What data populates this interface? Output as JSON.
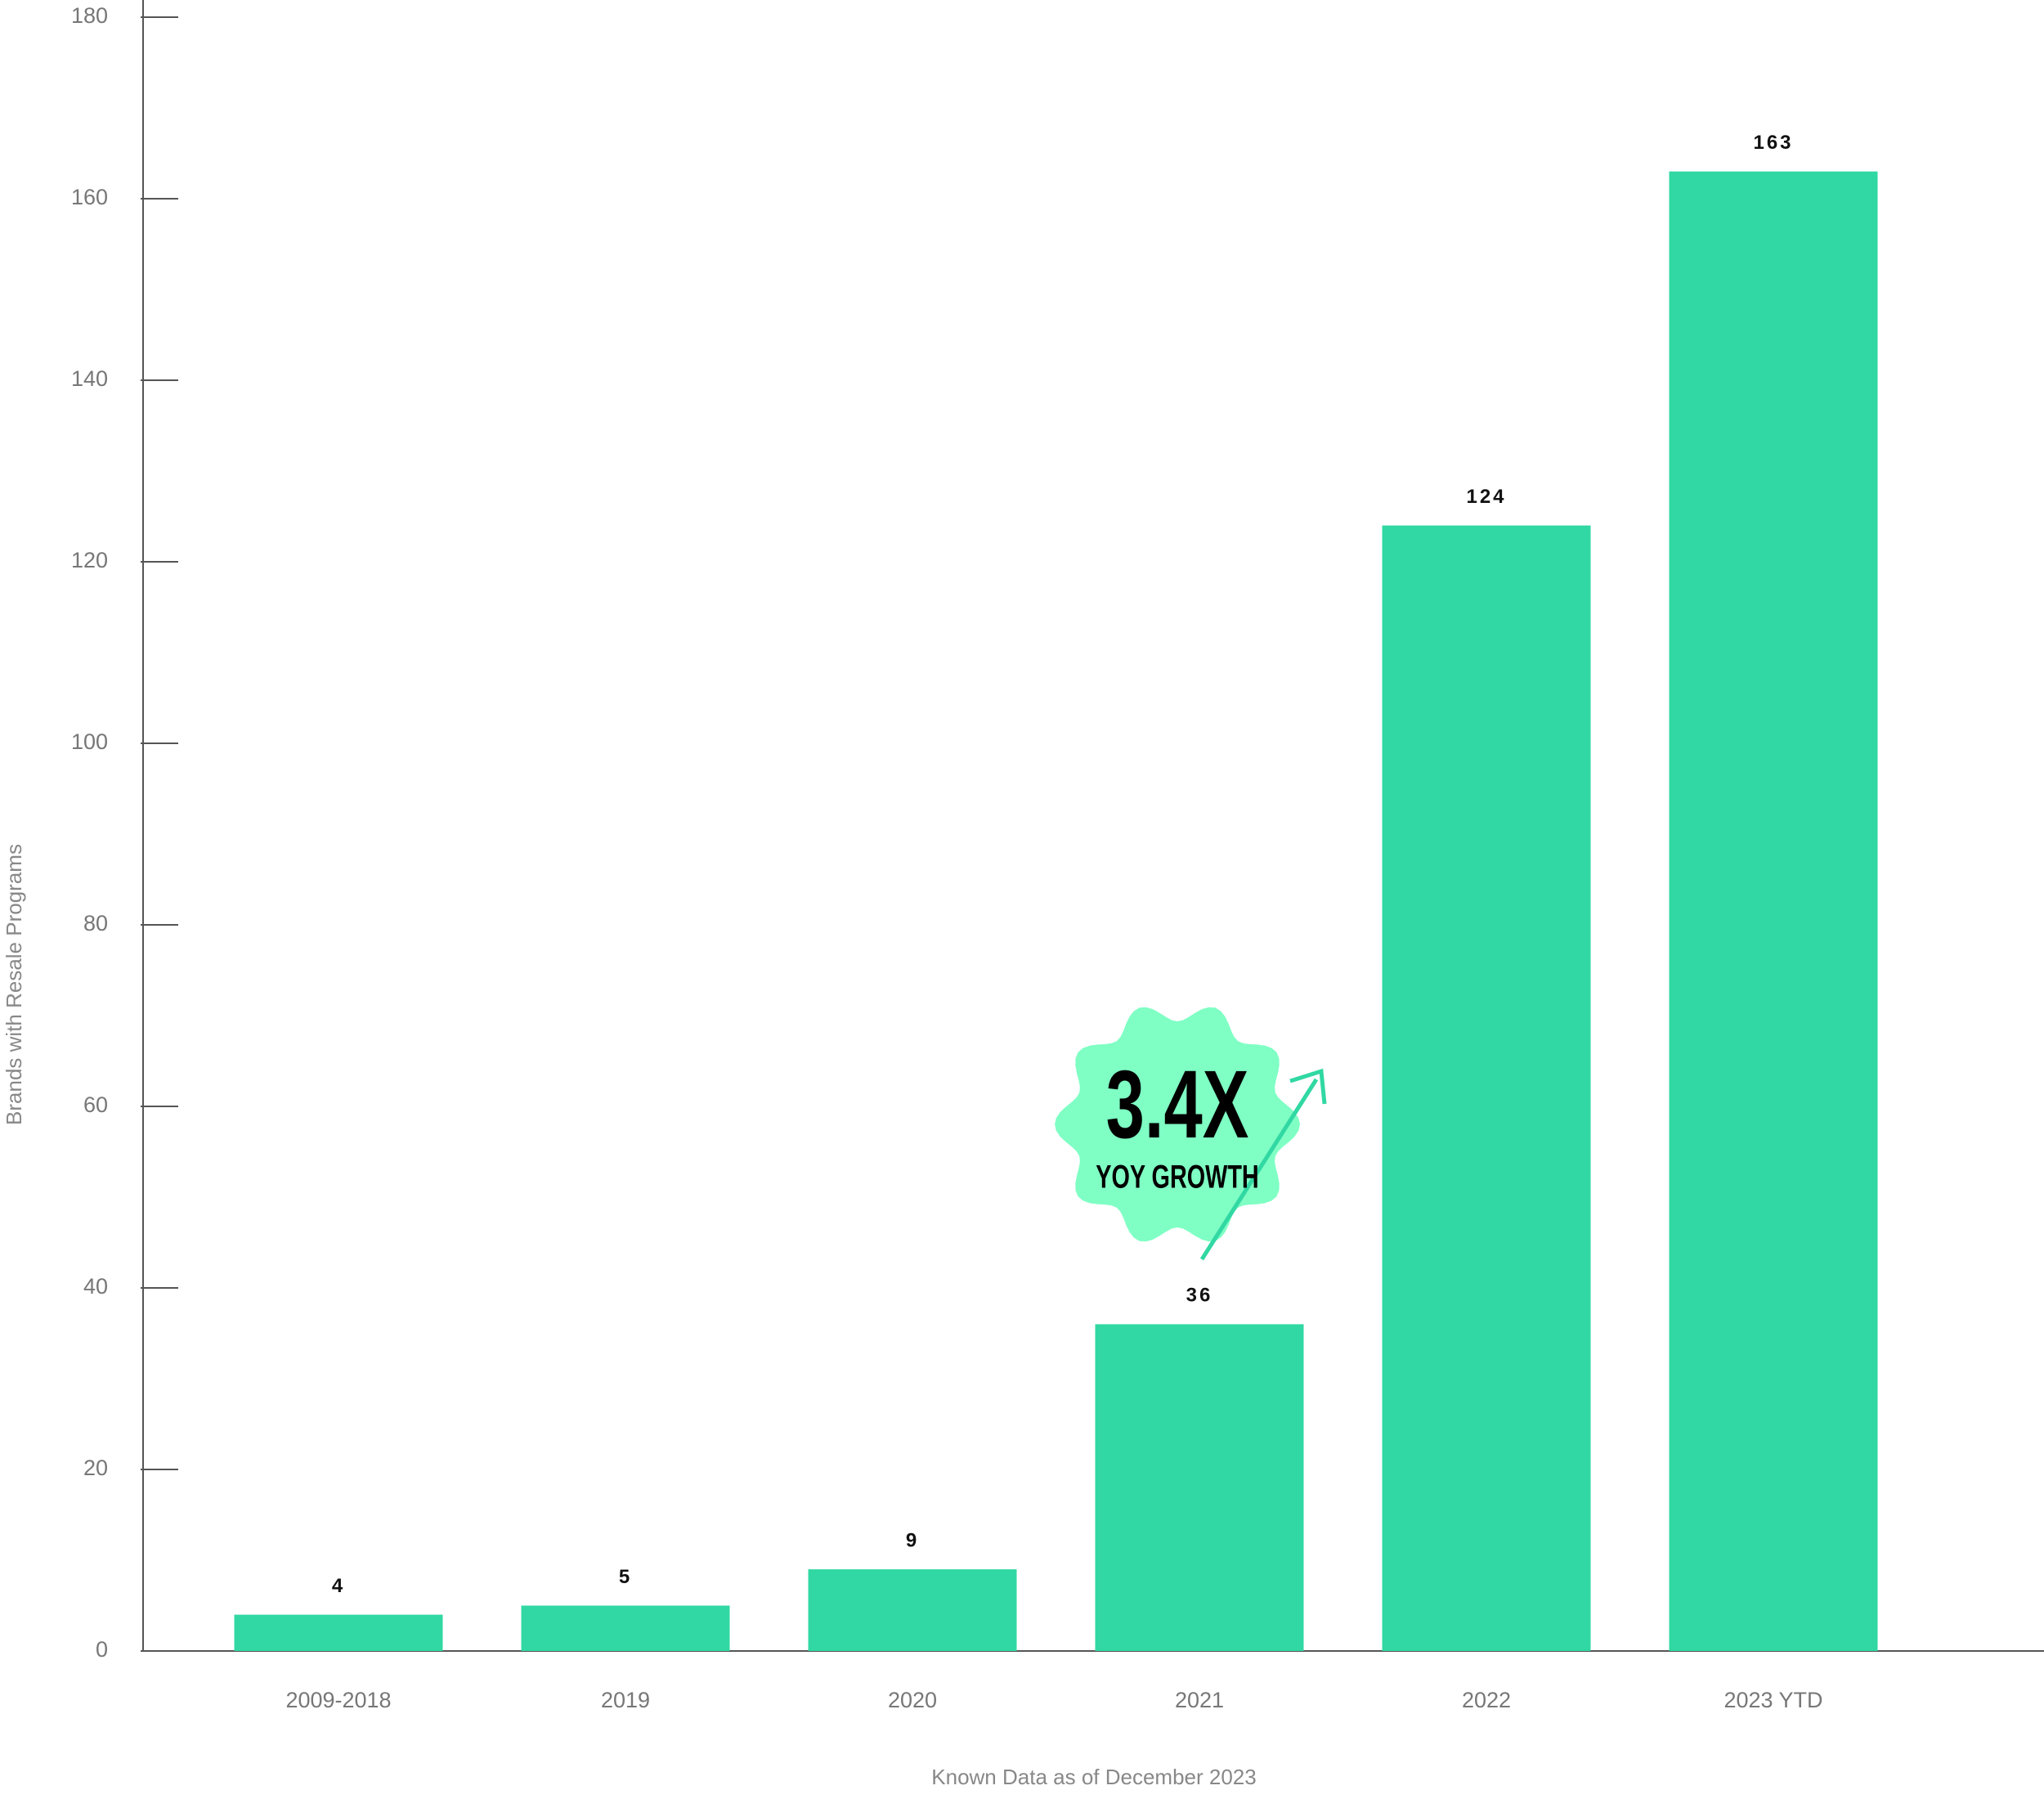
{
  "chart_data": {
    "type": "bar",
    "categories": [
      "2009-2018",
      "2019",
      "2020",
      "2021",
      "2022",
      "2023 YTD"
    ],
    "values": [
      4,
      5,
      9,
      36,
      124,
      163
    ],
    "color": "#31d8a3",
    "ylim": [
      0,
      180
    ],
    "yticks": [
      0,
      20,
      40,
      60,
      80,
      100,
      120,
      140,
      160,
      180
    ],
    "y_label": "Brands with Resale Programs",
    "x_label": "Known Data as of December 2023",
    "annotations": [
      "3.4X",
      "YOY GROWTH"
    ]
  }
}
